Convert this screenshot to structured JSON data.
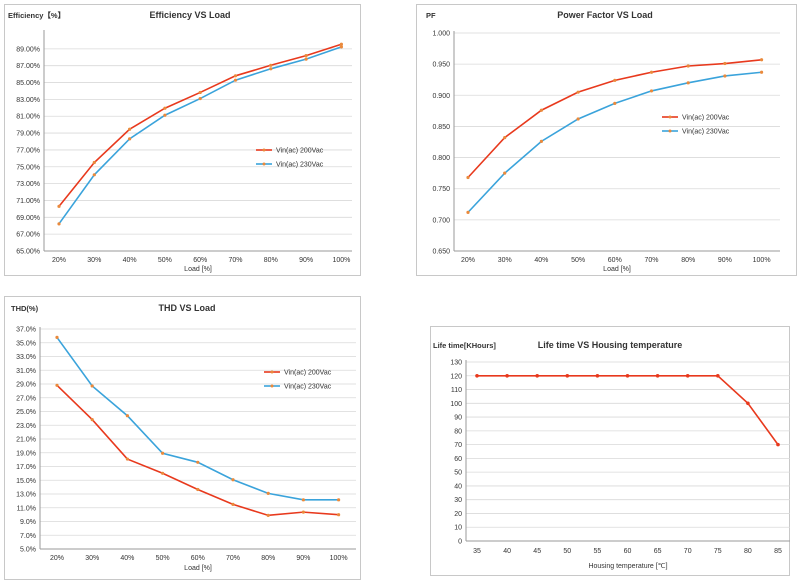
{
  "chart_data": [
    {
      "type": "line",
      "title": "Efficiency VS Load",
      "ylabel": "Efficiency【%】",
      "xlabel": "Load [%]",
      "categories": [
        "20%",
        "30%",
        "40%",
        "50%",
        "60%",
        "70%",
        "80%",
        "90%",
        "100%"
      ],
      "ylim": [
        65,
        90
      ],
      "y_ticks": [
        "65.00%",
        "67.00%",
        "69.00%",
        "71.00%",
        "73.00%",
        "75.00%",
        "77.00%",
        "79.00%",
        "81.00%",
        "83.00%",
        "85.00%",
        "87.00%",
        "89.00%"
      ],
      "grid": true,
      "legend": "right",
      "x": [
        20,
        30,
        40,
        50,
        60,
        70,
        80,
        90,
        100
      ],
      "series": [
        {
          "name": "Vin(ac) 200Vac",
          "color": "#e8391d",
          "values": [
            70.1,
            75.1,
            78.9,
            81.3,
            83.1,
            85.0,
            86.2,
            87.3,
            88.6
          ]
        },
        {
          "name": "Vin(ac) 230Vac",
          "color": "#3aa3db",
          "values": [
            68.1,
            73.7,
            77.8,
            80.5,
            82.4,
            84.5,
            85.8,
            86.9,
            88.3
          ]
        }
      ]
    },
    {
      "type": "line",
      "title": "Power Factor VS Load",
      "ylabel": "PF",
      "xlabel": "Load [%]",
      "categories": [
        "20%",
        "30%",
        "40%",
        "50%",
        "60%",
        "70%",
        "80%",
        "90%",
        "100%"
      ],
      "ylim": [
        0.65,
        1.0
      ],
      "y_ticks": [
        "0.650",
        "0.700",
        "0.750",
        "0.800",
        "0.850",
        "0.900",
        "0.950",
        "1.000"
      ],
      "grid": true,
      "legend": "right",
      "x": [
        20,
        30,
        40,
        50,
        60,
        70,
        80,
        90,
        100
      ],
      "series": [
        {
          "name": "Vin(ac) 200Vac",
          "color": "#e8391d",
          "values": [
            0.768,
            0.832,
            0.876,
            0.905,
            0.924,
            0.937,
            0.947,
            0.951,
            0.957
          ]
        },
        {
          "name": "Vin(ac) 230Vac",
          "color": "#3aa3db",
          "values": [
            0.712,
            0.775,
            0.826,
            0.862,
            0.887,
            0.907,
            0.92,
            0.931,
            0.937
          ]
        }
      ]
    },
    {
      "type": "line",
      "title": "THD VS Load",
      "ylabel": "THD(%)",
      "xlabel": "Load [%]",
      "categories": [
        "20%",
        "30%",
        "40%",
        "50%",
        "60%",
        "70%",
        "80%",
        "90%",
        "100%"
      ],
      "ylim": [
        5,
        39
      ],
      "y_ticks": [
        "5.0%",
        "7.0%",
        "9.0%",
        "11.0%",
        "13.0%",
        "15.0%",
        "17.0%",
        "19.0%",
        "21.0%",
        "23.0%",
        "25.0%",
        "27.0%",
        "29.0%",
        "31.0%",
        "33.0%",
        "35.0%",
        "37.0%"
      ],
      "grid": true,
      "legend": "right",
      "x": [
        20,
        30,
        40,
        50,
        60,
        70,
        80,
        90,
        100
      ],
      "series": [
        {
          "name": "Vin(ac) 200Vac",
          "color": "#e8391d",
          "values": [
            30.3,
            25.0,
            18.9,
            16.7,
            14.2,
            11.9,
            10.2,
            10.7,
            10.3
          ]
        },
        {
          "name": "Vin(ac) 230Vac",
          "color": "#3aa3db",
          "values": [
            37.7,
            30.2,
            25.6,
            19.8,
            18.4,
            15.7,
            13.6,
            12.6,
            12.6
          ]
        }
      ]
    },
    {
      "type": "line",
      "title": "Life time VS Housing temperature",
      "ylabel": "Life time[KHours]",
      "xlabel": "Housing temperature [℃]",
      "categories": [
        "35",
        "40",
        "45",
        "50",
        "55",
        "60",
        "65",
        "70",
        "75",
        "80",
        "85"
      ],
      "ylim": [
        0,
        130
      ],
      "y_ticks": [
        "0",
        "10",
        "20",
        "30",
        "40",
        "50",
        "60",
        "70",
        "80",
        "90",
        "100",
        "110",
        "120",
        "130"
      ],
      "grid": true,
      "x": [
        35,
        40,
        45,
        50,
        55,
        60,
        65,
        70,
        75,
        80,
        85
      ],
      "series": [
        {
          "color": "#e8391d",
          "values": [
            120,
            120,
            120,
            120,
            120,
            120,
            120,
            120,
            120,
            100,
            70
          ]
        }
      ]
    }
  ]
}
